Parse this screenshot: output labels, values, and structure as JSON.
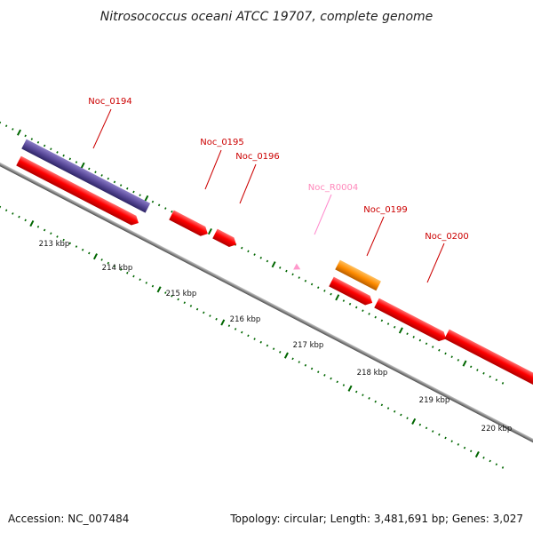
{
  "title": "Nitrosococcus oceani ATCC 19707, complete genome",
  "footer": {
    "accession": "Accession: NC_007484",
    "summary": "Topology: circular; Length: 3,481,691 bp; Genes: 3,027"
  },
  "colors": {
    "cds": "#ff0000",
    "gene": "#5b4b9b",
    "rna_gene": "#ff8c00",
    "ncrna": "#ff88cc",
    "backbone": "#8a8a8a",
    "ticks": "#006600",
    "label": "#cc0000",
    "ncrna_label": "#ff88bb"
  },
  "ticks": [
    "213 kbp",
    "214 kbp",
    "215 kbp",
    "216 kbp",
    "217 kbp",
    "218 kbp",
    "219 kbp",
    "220 kbp"
  ],
  "features": [
    {
      "label": "Noc_0194",
      "type": "gene"
    },
    {
      "label": "Noc_0195",
      "type": "cds"
    },
    {
      "label": "Noc_0196",
      "type": "cds"
    },
    {
      "label": "Noc_R0004",
      "type": "ncrna"
    },
    {
      "label": "Noc_0199",
      "type": "rna_gene"
    },
    {
      "label": "Noc_0200",
      "type": "cds"
    }
  ]
}
